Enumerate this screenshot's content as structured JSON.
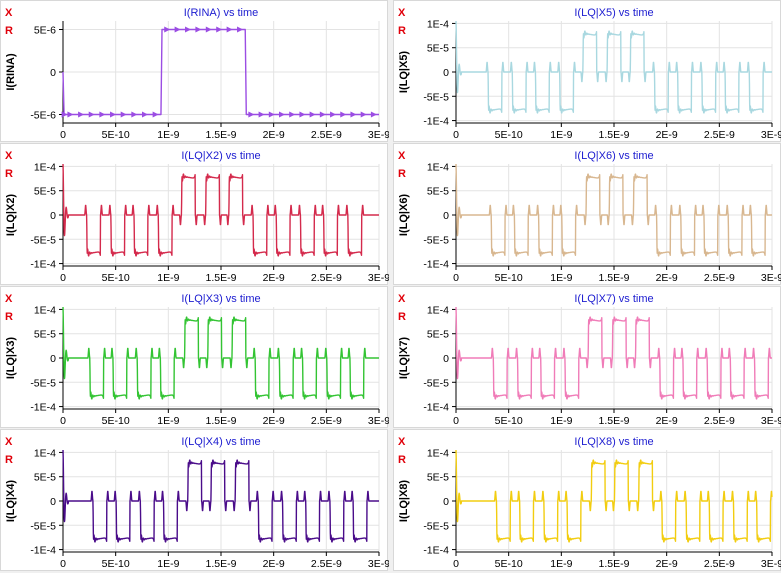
{
  "controls": {
    "x_label": "X",
    "r_label": "R"
  },
  "chart_data": [
    {
      "type": "line",
      "title": "I(RINA) vs time",
      "ylabel": "I(RINA)",
      "color": "#9b4de3",
      "markers": true,
      "xlim": [
        0,
        3e-09
      ],
      "ylim": [
        -6e-06,
        6e-06
      ],
      "xticks": [
        0,
        5e-10,
        1e-09,
        1.5e-09,
        2e-09,
        2.5e-09,
        3e-09
      ],
      "xtick_labels": [
        "0",
        "5E-10",
        "1E-9",
        "1.5E-9",
        "2E-9",
        "2.5E-9",
        "3E-9"
      ],
      "yticks": [
        5e-06,
        0,
        -5e-06
      ],
      "ytick_labels": [
        "5E-6",
        "0",
        "-5E-6"
      ],
      "series": [
        {
          "x": [
            0,
            1e-11,
            2e-11,
            9.3e-10,
            9.4e-10,
            1.73e-09,
            1.74e-09,
            3e-09
          ],
          "y": [
            0,
            -5e-06,
            -5e-06,
            -5e-06,
            5e-06,
            5e-06,
            -5e-06,
            -5e-06
          ]
        }
      ]
    },
    {
      "type": "line",
      "title": "I(LQ|X2) vs time",
      "ylabel": "I(LQ|X2)",
      "color": "#d42a4c",
      "xlim": [
        0,
        3e-09
      ],
      "ylim": [
        -0.000105,
        0.000105
      ],
      "xticks": [
        0,
        5e-10,
        1e-09,
        1.5e-09,
        2e-09,
        2.5e-09,
        3e-09
      ],
      "xtick_labels": [
        "0",
        "5E-10",
        "1E-9",
        "1.5E-9",
        "2E-9",
        "2.5E-9",
        "3E-9"
      ],
      "yticks": [
        0.0001,
        5e-05,
        0,
        -5e-05,
        -0.0001
      ],
      "ytick_labels": [
        "1E-4",
        "5E-5",
        "0",
        "-5E-5",
        "-1E-4"
      ],
      "pulse_centers": [
        2.9e-10,
        5.2e-10,
        7.4e-10,
        9.7e-10,
        1.19e-09,
        1.42e-09,
        1.64e-09,
        1.87e-09,
        2.09e-09,
        2.32e-09,
        2.54e-09,
        2.77e-09
      ],
      "pulse_amplitudes": [
        -8e-05,
        -8e-05,
        -8e-05,
        -8e-05,
        8e-05,
        8e-05,
        8e-05,
        -8e-05,
        -8e-05,
        -8e-05,
        -8e-05,
        -8e-05
      ],
      "pulse_width": 1.3e-10
    },
    {
      "type": "line",
      "title": "I(LQ|X3) vs time",
      "ylabel": "I(LQ|X3)",
      "color": "#33c433",
      "xlim": [
        0,
        3e-09
      ],
      "ylim": [
        -0.000105,
        0.000105
      ],
      "xticks": [
        0,
        5e-10,
        1e-09,
        1.5e-09,
        2e-09,
        2.5e-09,
        3e-09
      ],
      "xtick_labels": [
        "0",
        "5E-10",
        "1E-9",
        "1.5E-9",
        "2E-9",
        "2.5E-9",
        "3E-9"
      ],
      "yticks": [
        0.0001,
        5e-05,
        0,
        -5e-05,
        -0.0001
      ],
      "ytick_labels": [
        "1E-4",
        "5E-5",
        "0",
        "-5E-5",
        "-1E-4"
      ],
      "pulse_centers": [
        3.2e-10,
        5.4e-10,
        7.7e-10,
        9.9e-10,
        1.22e-09,
        1.44e-09,
        1.67e-09,
        1.89e-09,
        2.12e-09,
        2.34e-09,
        2.57e-09,
        2.79e-09
      ],
      "pulse_amplitudes": [
        -8e-05,
        -8e-05,
        -8e-05,
        -8e-05,
        8e-05,
        8e-05,
        8e-05,
        -8e-05,
        -8e-05,
        -8e-05,
        -8e-05,
        -8e-05
      ],
      "pulse_width": 1.3e-10
    },
    {
      "type": "line",
      "title": "I(LQ|X4) vs time",
      "ylabel": "I(LQ|X4)",
      "color": "#4a0c8a",
      "xlim": [
        0,
        3e-09
      ],
      "ylim": [
        -0.000105,
        0.000105
      ],
      "xticks": [
        0,
        5e-10,
        1e-09,
        1.5e-09,
        2e-09,
        2.5e-09,
        3e-09
      ],
      "xtick_labels": [
        "0",
        "5E-10",
        "1E-9",
        "1.5E-9",
        "2E-9",
        "2.5E-9",
        "3E-9"
      ],
      "yticks": [
        0.0001,
        5e-05,
        0,
        -5e-05,
        -0.0001
      ],
      "ytick_labels": [
        "1E-4",
        "5E-5",
        "0",
        "-5E-5",
        "-1E-4"
      ],
      "pulse_centers": [
        3.5e-10,
        5.7e-10,
        8e-10,
        1.02e-09,
        1.25e-09,
        1.47e-09,
        1.7e-09,
        1.92e-09,
        2.15e-09,
        2.37e-09,
        2.6e-09,
        2.82e-09
      ],
      "pulse_amplitudes": [
        -8e-05,
        -8e-05,
        -8e-05,
        -8e-05,
        8e-05,
        8e-05,
        8e-05,
        -8e-05,
        -8e-05,
        -8e-05,
        -8e-05,
        -8e-05
      ],
      "pulse_width": 1.3e-10
    },
    {
      "type": "line",
      "title": "I(LQ|X5) vs time",
      "ylabel": "I(LQ|X5)",
      "color": "#a9d8e0",
      "xlim": [
        0,
        3e-09
      ],
      "ylim": [
        -0.000105,
        0.000105
      ],
      "xticks": [
        0,
        5e-10,
        1e-09,
        1.5e-09,
        2e-09,
        2.5e-09,
        3e-09
      ],
      "xtick_labels": [
        "0",
        "5E-10",
        "1E-9",
        "1.5E-9",
        "2E-9",
        "2.5E-9",
        "3E-9"
      ],
      "yticks": [
        0.0001,
        5e-05,
        0,
        -5e-05,
        -0.0001
      ],
      "ytick_labels": [
        "1E-4",
        "5E-5",
        "0",
        "-5E-5",
        "-1E-4"
      ],
      "pulse_centers": [
        3.7e-10,
        6e-10,
        8.2e-10,
        1.05e-09,
        1.27e-09,
        1.5e-09,
        1.72e-09,
        1.95e-09,
        2.17e-09,
        2.4e-09,
        2.62e-09,
        2.85e-09
      ],
      "pulse_amplitudes": [
        -8e-05,
        -8e-05,
        -8e-05,
        -8e-05,
        8e-05,
        8e-05,
        8e-05,
        -8e-05,
        -8e-05,
        -8e-05,
        -8e-05,
        -8e-05
      ],
      "pulse_width": 1.3e-10
    },
    {
      "type": "line",
      "title": "I(LQ|X6) vs time",
      "ylabel": "I(LQ|X6)",
      "color": "#d8b790",
      "xlim": [
        0,
        3e-09
      ],
      "ylim": [
        -0.000105,
        0.000105
      ],
      "xticks": [
        0,
        5e-10,
        1e-09,
        1.5e-09,
        2e-09,
        2.5e-09,
        3e-09
      ],
      "xtick_labels": [
        "0",
        "5E-10",
        "1E-9",
        "1.5E-9",
        "2E-9",
        "2.5E-9",
        "3E-9"
      ],
      "yticks": [
        0.0001,
        5e-05,
        0,
        -5e-05,
        -0.0001
      ],
      "ytick_labels": [
        "1E-4",
        "5E-5",
        "0",
        "-5E-5",
        "-1E-4"
      ],
      "pulse_centers": [
        4e-10,
        6.2e-10,
        8.5e-10,
        1.07e-09,
        1.3e-09,
        1.52e-09,
        1.75e-09,
        1.97e-09,
        2.2e-09,
        2.42e-09,
        2.65e-09,
        2.87e-09
      ],
      "pulse_amplitudes": [
        -8e-05,
        -8e-05,
        -8e-05,
        -8e-05,
        8e-05,
        8e-05,
        8e-05,
        -8e-05,
        -8e-05,
        -8e-05,
        -8e-05,
        -8e-05
      ],
      "pulse_width": 1.3e-10
    },
    {
      "type": "line",
      "title": "I(LQ|X7) vs time",
      "ylabel": "I(LQ|X7)",
      "color": "#f07cb8",
      "xlim": [
        0,
        3e-09
      ],
      "ylim": [
        -0.000105,
        0.000105
      ],
      "xticks": [
        0,
        5e-10,
        1e-09,
        1.5e-09,
        2e-09,
        2.5e-09,
        3e-09
      ],
      "xtick_labels": [
        "0",
        "5E-10",
        "1E-9",
        "1.5E-9",
        "2E-9",
        "2.5E-9",
        "3E-9"
      ],
      "yticks": [
        0.0001,
        5e-05,
        0,
        -5e-05,
        -0.0001
      ],
      "ytick_labels": [
        "1E-4",
        "5E-5",
        "0",
        "-5E-5",
        "-1E-4"
      ],
      "pulse_centers": [
        4.2e-10,
        6.5e-10,
        8.7e-10,
        1.1e-09,
        1.32e-09,
        1.55e-09,
        1.77e-09,
        2e-09,
        2.22e-09,
        2.45e-09,
        2.67e-09,
        2.9e-09
      ],
      "pulse_amplitudes": [
        -8e-05,
        -8e-05,
        -8e-05,
        -8e-05,
        8e-05,
        8e-05,
        8e-05,
        -8e-05,
        -8e-05,
        -8e-05,
        -8e-05,
        -8e-05
      ],
      "pulse_width": 1.3e-10
    },
    {
      "type": "line",
      "title": "I(LQ|X8) vs time",
      "ylabel": "I(LQ|X8)",
      "color": "#f2cd10",
      "xlim": [
        0,
        3e-09
      ],
      "ylim": [
        -0.000105,
        0.000105
      ],
      "xticks": [
        0,
        5e-10,
        1e-09,
        1.5e-09,
        2e-09,
        2.5e-09,
        3e-09
      ],
      "xtick_labels": [
        "0",
        "5E-10",
        "1E-9",
        "1.5E-9",
        "2E-9",
        "2.5E-9",
        "3E-9"
      ],
      "yticks": [
        0.0001,
        5e-05,
        0,
        -5e-05,
        -0.0001
      ],
      "ytick_labels": [
        "1E-4",
        "5E-5",
        "0",
        "-5E-5",
        "-1E-4"
      ],
      "pulse_centers": [
        4.5e-10,
        6.7e-10,
        9e-10,
        1.12e-09,
        1.35e-09,
        1.57e-09,
        1.8e-09,
        2.02e-09,
        2.25e-09,
        2.47e-09,
        2.7e-09,
        2.92e-09
      ],
      "pulse_amplitudes": [
        -8e-05,
        -8e-05,
        -8e-05,
        -8e-05,
        8e-05,
        8e-05,
        8e-05,
        -8e-05,
        -8e-05,
        -8e-05,
        -8e-05,
        -8e-05
      ],
      "pulse_width": 1.3e-10
    }
  ]
}
